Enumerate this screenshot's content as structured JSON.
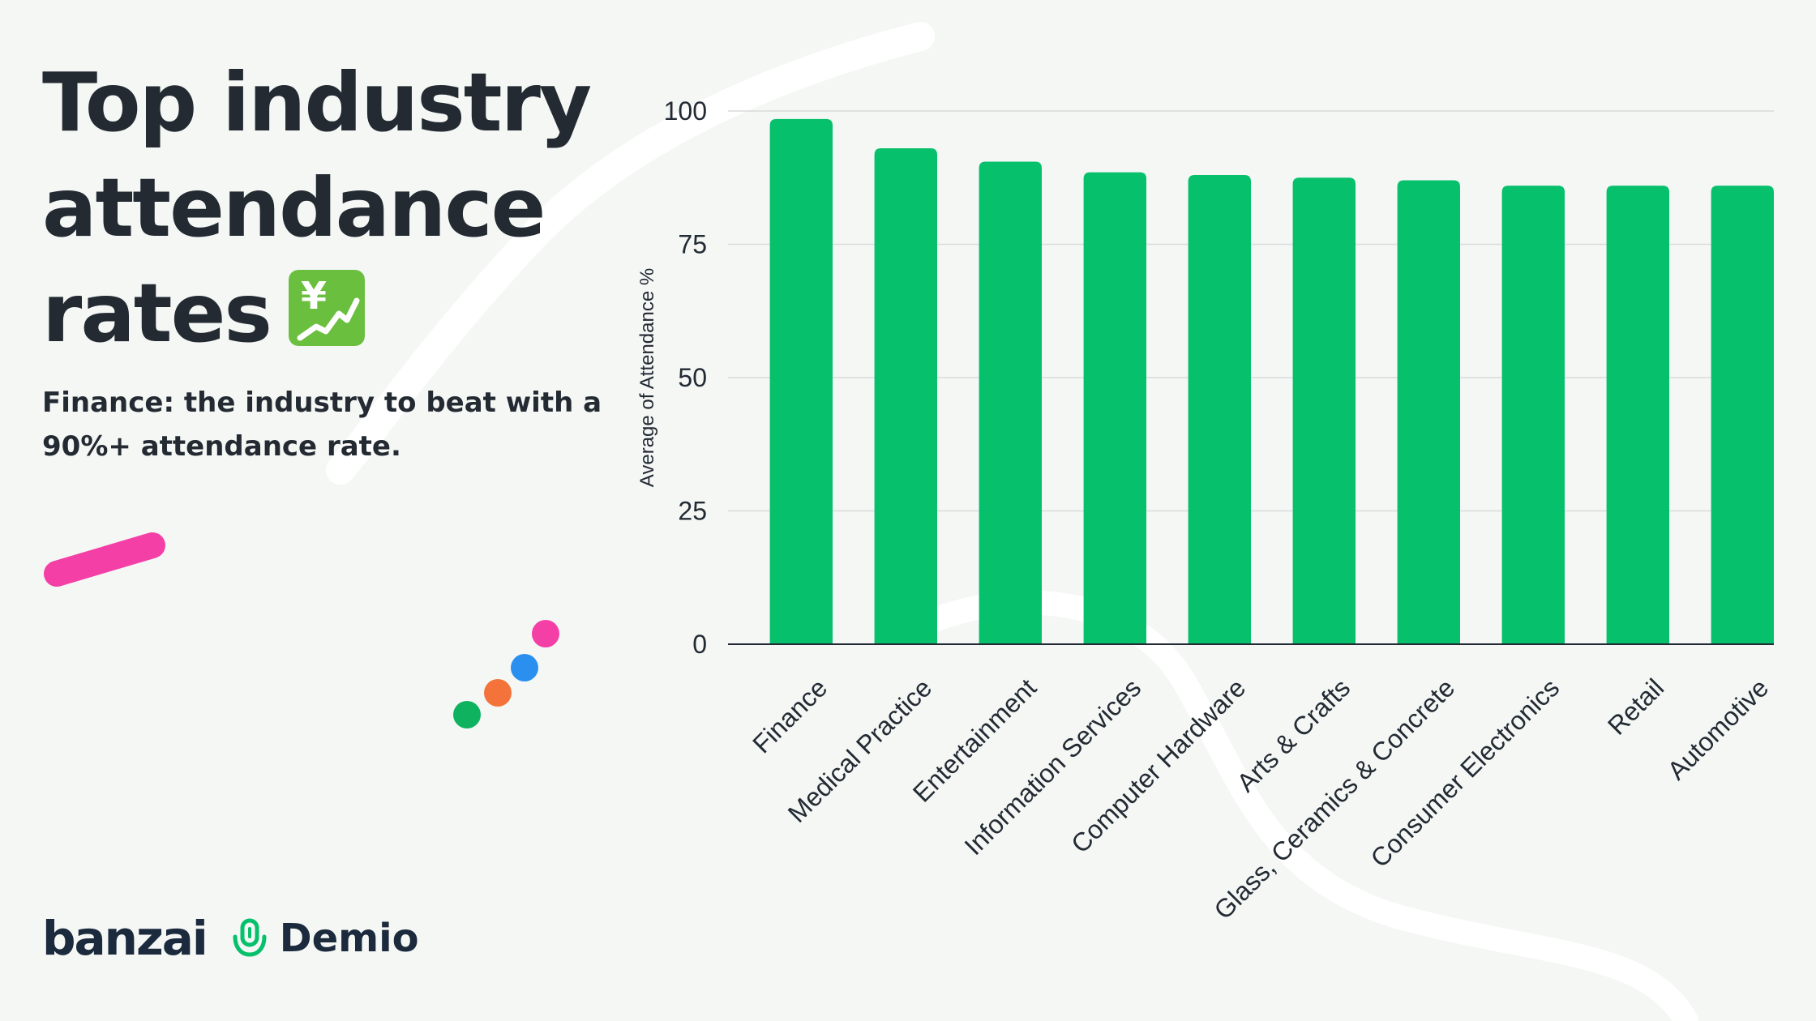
{
  "title_lines": [
    "Top industry",
    "attendance",
    "rates"
  ],
  "title_emoji": "yen-chart-icon",
  "subtitle": "Finance: the industry to beat with a 90%+ attendance rate.",
  "brand": {
    "banzai": "banzai",
    "demio": "Demio",
    "demio_icon": "microphone-icon"
  },
  "colors": {
    "background": "#f5f7f5",
    "bar": "#06c06b",
    "title_text": "#232a32",
    "brand_text": "#1b2a3d",
    "gridline": "#d9dcdc",
    "deco_pink": "#f43fa6",
    "deco_blue": "#2b8ff0",
    "deco_orange": "#f4733b",
    "deco_green": "#0fb35f"
  },
  "chart_data": {
    "type": "bar",
    "categories": [
      "Finance",
      "Medical Practice",
      "Entertainment",
      "Information Services",
      "Computer Hardware",
      "Arts & Crafts",
      "Glass, Ceramics & Concrete",
      "Consumer Electronics",
      "Retail",
      "Automotive"
    ],
    "values": [
      98.5,
      93,
      90.5,
      88.5,
      88,
      87.5,
      87,
      86,
      86,
      86
    ],
    "title": "",
    "xlabel": "",
    "ylabel": "Average of Attendance %",
    "ylim": [
      0,
      100
    ],
    "yticks": [
      0,
      25,
      50,
      75,
      100
    ],
    "grid": true,
    "legend": "none"
  }
}
